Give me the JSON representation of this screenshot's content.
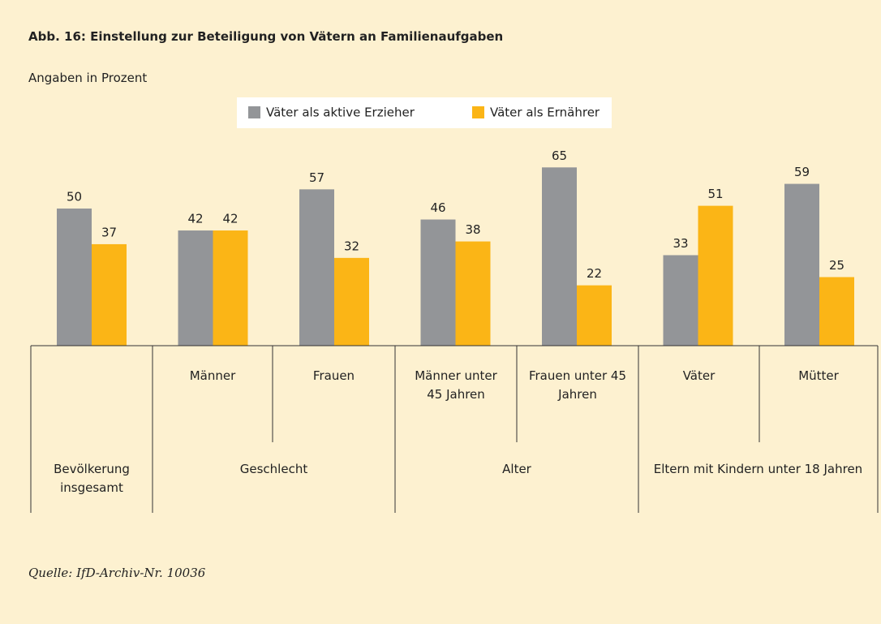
{
  "chart_data": {
    "type": "bar",
    "title": "Abb. 16: Einstellung zur Beteiligung von Vätern an Familienaufgaben",
    "subtitle": "Angaben in Prozent",
    "categories": [
      null,
      "Männer",
      "Frauen",
      "Männer unter 45 Jahren",
      "Frauen unter 45 Jahren",
      "Väter",
      "Mütter"
    ],
    "groups": [
      "Bevölkerung insgesamt",
      "Geschlecht",
      "Alter",
      "Eltern mit Kindern unter 18 Jahren"
    ],
    "series": [
      {
        "name": "Väter als aktive Erzieher",
        "color": "#939598",
        "values": [
          50,
          42,
          57,
          46,
          65,
          33,
          59
        ]
      },
      {
        "name": "Väter als Ernährer",
        "color": "#fbb516",
        "values": [
          37,
          42,
          32,
          38,
          22,
          51,
          25
        ]
      }
    ],
    "legend": "top",
    "source": "Quelle: IfD-Archiv-Nr. 10036"
  }
}
